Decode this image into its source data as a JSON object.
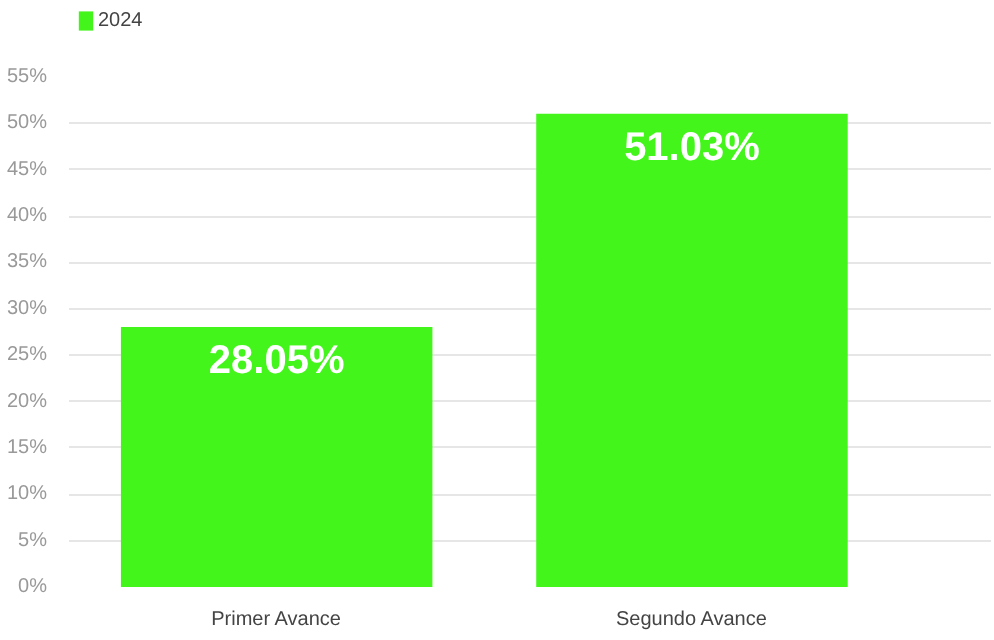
{
  "chart_data": {
    "type": "bar",
    "categories": [
      "Primer Avance",
      "Segundo Avance"
    ],
    "series": [
      {
        "name": "2024",
        "color": "#44f51c",
        "values": [
          28.05,
          51.03
        ],
        "value_labels": [
          "28.05%",
          "51.03%"
        ]
      }
    ],
    "ylim": [
      0,
      55
    ],
    "yticks": [
      {
        "value": 0,
        "label": "0%"
      },
      {
        "value": 5,
        "label": "5%"
      },
      {
        "value": 10,
        "label": "10%"
      },
      {
        "value": 15,
        "label": "15%"
      },
      {
        "value": 20,
        "label": "20%"
      },
      {
        "value": 25,
        "label": "25%"
      },
      {
        "value": 30,
        "label": "30%"
      },
      {
        "value": 35,
        "label": "35%"
      },
      {
        "value": 40,
        "label": "40%"
      },
      {
        "value": 45,
        "label": "45%"
      },
      {
        "value": 50,
        "label": "50%"
      },
      {
        "value": 55,
        "label": "55%"
      }
    ],
    "grid": "y",
    "legend": "top left"
  }
}
